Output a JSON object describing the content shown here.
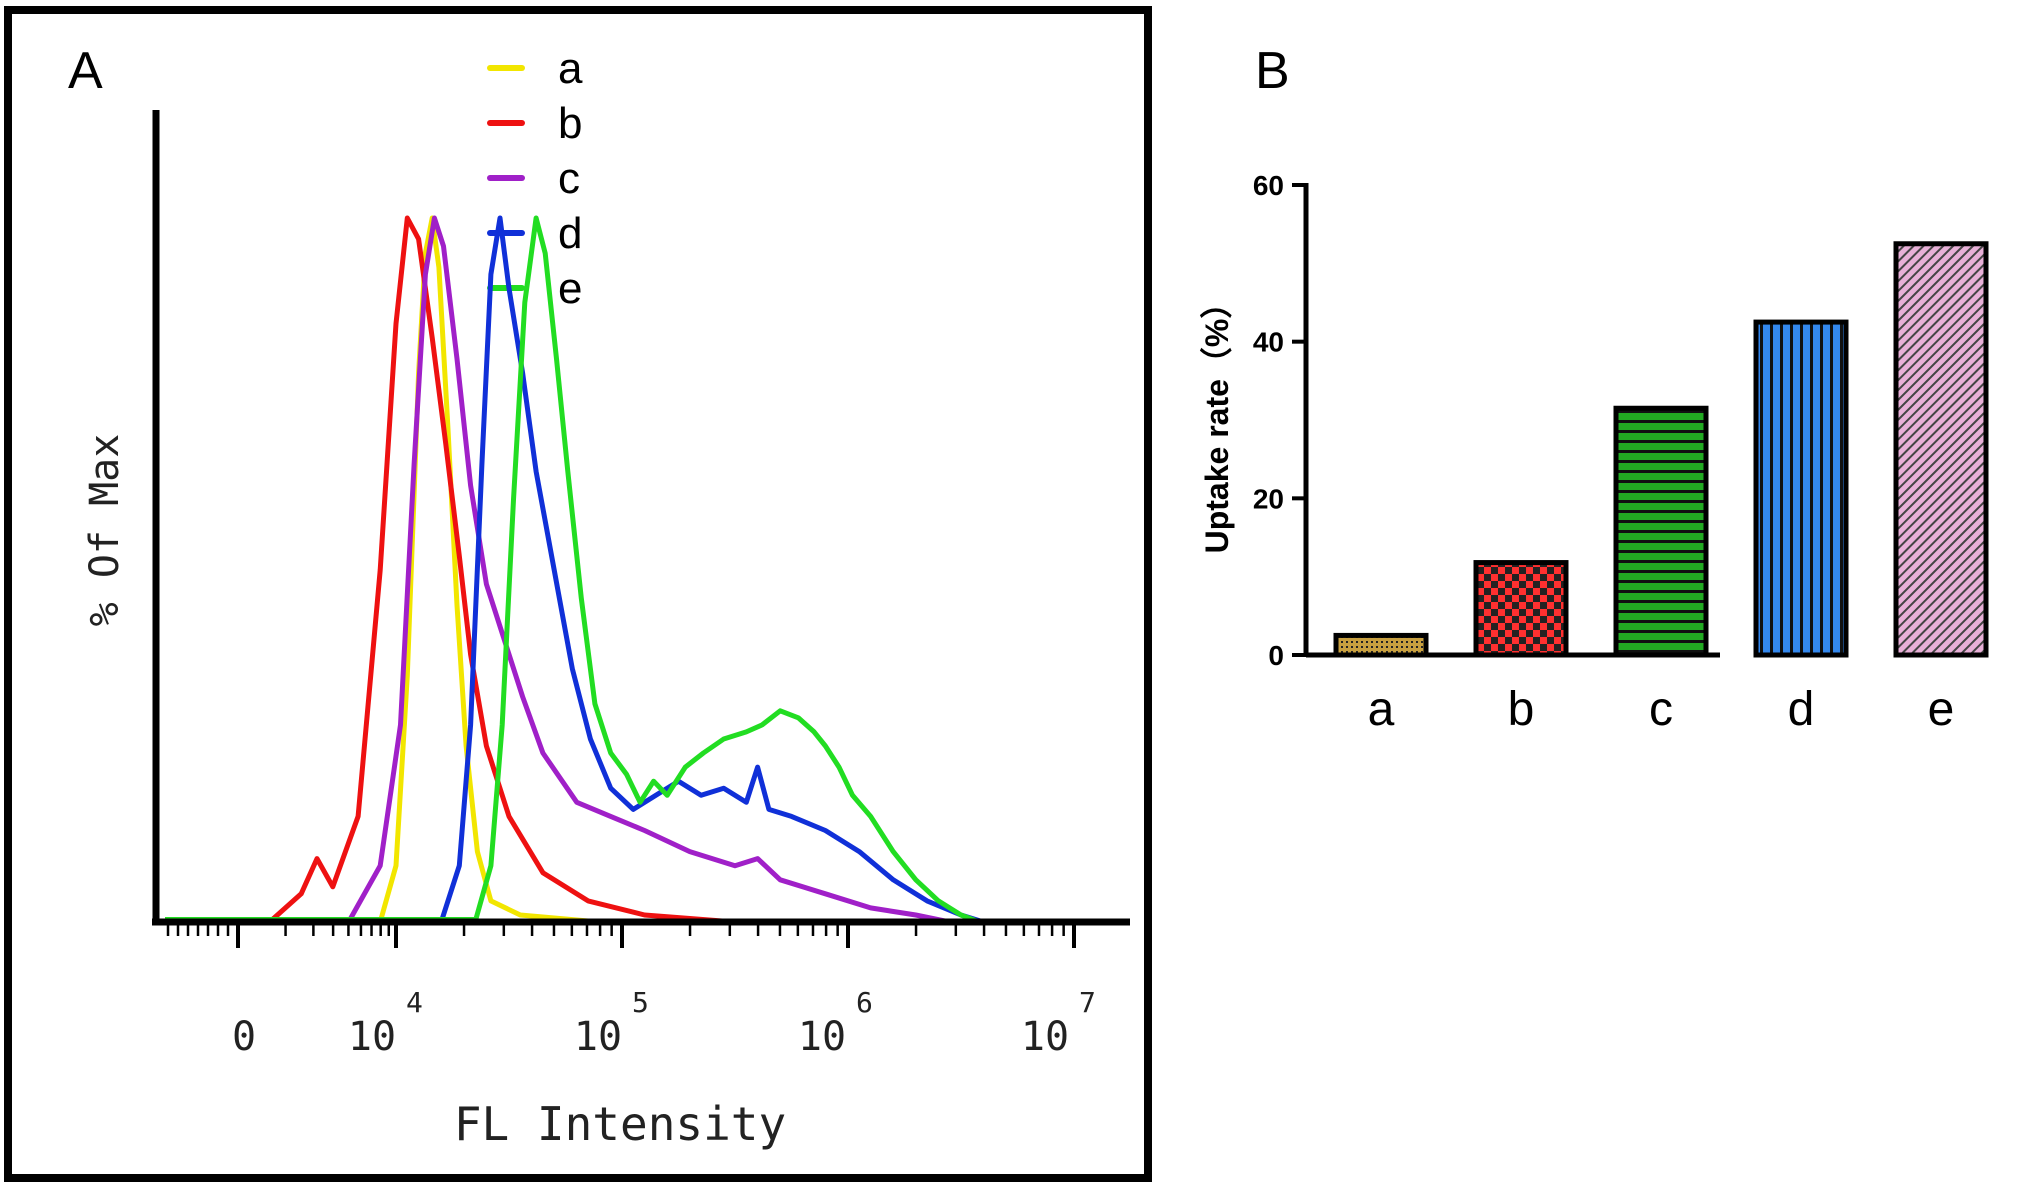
{
  "chart_data": [
    {
      "panel": "A",
      "type": "line",
      "xlabel": "FL Intensity",
      "ylabel": "% Of Max",
      "xscale": "log",
      "x_ticks": [
        {
          "base": "0",
          "exp": ""
        },
        {
          "base": "10",
          "exp": "4"
        },
        {
          "base": "10",
          "exp": "5"
        },
        {
          "base": "10",
          "exp": "6"
        },
        {
          "base": "10",
          "exp": "7"
        }
      ],
      "ylim": [
        0,
        100
      ],
      "legend_position": "top-center",
      "series": [
        {
          "name": "a",
          "color": "#f2e600",
          "points": [
            [
              3.95,
              0
            ],
            [
              4.0,
              8
            ],
            [
              4.05,
              35
            ],
            [
              4.1,
              78
            ],
            [
              4.13,
              95
            ],
            [
              4.16,
              100
            ],
            [
              4.19,
              93
            ],
            [
              4.23,
              70
            ],
            [
              4.27,
              45
            ],
            [
              4.31,
              25
            ],
            [
              4.36,
              10
            ],
            [
              4.42,
              3
            ],
            [
              4.55,
              1
            ],
            [
              4.9,
              0
            ]
          ]
        },
        {
          "name": "b",
          "color": "#ee1111",
          "points": [
            [
              3.6,
              0
            ],
            [
              3.7,
              4
            ],
            [
              3.75,
              9
            ],
            [
              3.8,
              5
            ],
            [
              3.88,
              15
            ],
            [
              3.95,
              50
            ],
            [
              4.0,
              85
            ],
            [
              4.05,
              100
            ],
            [
              4.1,
              97
            ],
            [
              4.16,
              83
            ],
            [
              4.22,
              68
            ],
            [
              4.28,
              52
            ],
            [
              4.33,
              38
            ],
            [
              4.4,
              25
            ],
            [
              4.5,
              15
            ],
            [
              4.65,
              7
            ],
            [
              4.85,
              3
            ],
            [
              5.1,
              1
            ],
            [
              5.5,
              0
            ]
          ]
        },
        {
          "name": "c",
          "color": "#a020c8",
          "points": [
            [
              3.85,
              0
            ],
            [
              3.95,
              8
            ],
            [
              4.02,
              28
            ],
            [
              4.08,
              65
            ],
            [
              4.13,
              92
            ],
            [
              4.17,
              100
            ],
            [
              4.21,
              96
            ],
            [
              4.27,
              80
            ],
            [
              4.33,
              62
            ],
            [
              4.4,
              48
            ],
            [
              4.48,
              40
            ],
            [
              4.56,
              32
            ],
            [
              4.65,
              24
            ],
            [
              4.8,
              17
            ],
            [
              4.95,
              15
            ],
            [
              5.1,
              13
            ],
            [
              5.3,
              10
            ],
            [
              5.5,
              8
            ],
            [
              5.6,
              9
            ],
            [
              5.7,
              6
            ],
            [
              5.9,
              4
            ],
            [
              6.1,
              2
            ],
            [
              6.3,
              1
            ],
            [
              6.45,
              0
            ]
          ]
        },
        {
          "name": "d",
          "color": "#1030d8",
          "points": [
            [
              4.2,
              0
            ],
            [
              4.28,
              8
            ],
            [
              4.33,
              28
            ],
            [
              4.38,
              65
            ],
            [
              4.42,
              92
            ],
            [
              4.46,
              100
            ],
            [
              4.5,
              90
            ],
            [
              4.56,
              78
            ],
            [
              4.62,
              64
            ],
            [
              4.7,
              50
            ],
            [
              4.78,
              36
            ],
            [
              4.86,
              26
            ],
            [
              4.95,
              19
            ],
            [
              5.05,
              16
            ],
            [
              5.15,
              18
            ],
            [
              5.25,
              20
            ],
            [
              5.35,
              18
            ],
            [
              5.45,
              19
            ],
            [
              5.55,
              17
            ],
            [
              5.6,
              22
            ],
            [
              5.65,
              16
            ],
            [
              5.75,
              15
            ],
            [
              5.9,
              13
            ],
            [
              6.05,
              10
            ],
            [
              6.2,
              6
            ],
            [
              6.35,
              3
            ],
            [
              6.5,
              1
            ],
            [
              6.6,
              0
            ]
          ]
        },
        {
          "name": "e",
          "color": "#22dd22",
          "points": [
            [
              4.35,
              0
            ],
            [
              4.42,
              8
            ],
            [
              4.47,
              28
            ],
            [
              4.52,
              60
            ],
            [
              4.57,
              88
            ],
            [
              4.62,
              100
            ],
            [
              4.66,
              95
            ],
            [
              4.71,
              80
            ],
            [
              4.76,
              64
            ],
            [
              4.82,
              46
            ],
            [
              4.88,
              31
            ],
            [
              4.95,
              24
            ],
            [
              5.02,
              21
            ],
            [
              5.08,
              17
            ],
            [
              5.14,
              20
            ],
            [
              5.2,
              18
            ],
            [
              5.28,
              22
            ],
            [
              5.36,
              24
            ],
            [
              5.45,
              26
            ],
            [
              5.55,
              27
            ],
            [
              5.62,
              28
            ],
            [
              5.7,
              30
            ],
            [
              5.78,
              29
            ],
            [
              5.85,
              27
            ],
            [
              5.9,
              25
            ],
            [
              5.96,
              22
            ],
            [
              6.02,
              18
            ],
            [
              6.1,
              15
            ],
            [
              6.2,
              10
            ],
            [
              6.3,
              6
            ],
            [
              6.4,
              3
            ],
            [
              6.5,
              1
            ],
            [
              6.58,
              0
            ]
          ]
        }
      ]
    },
    {
      "panel": "B",
      "type": "bar",
      "title": "",
      "xlabel": "",
      "ylabel": "Uptake rate（%）",
      "categories": [
        "a",
        "b",
        "c",
        "d",
        "e"
      ],
      "values": [
        2.5,
        11.8,
        31.5,
        42.5,
        52.5
      ],
      "ylim": [
        0,
        60
      ],
      "y_ticks": [
        0,
        20,
        40,
        60
      ],
      "colors": [
        "#c8a040",
        "#ff3030",
        "#22aa22",
        "#3388ee",
        "#e8b0d8"
      ],
      "patterns": [
        "dots",
        "checker",
        "horizontal",
        "vertical",
        "diagonal"
      ]
    }
  ]
}
